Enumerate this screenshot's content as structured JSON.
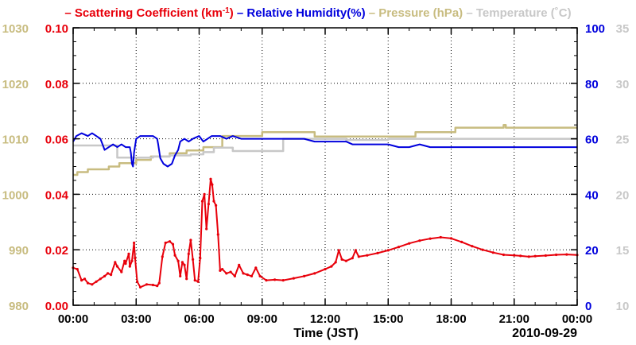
{
  "chart_data": {
    "type": "line",
    "title_parts": [
      {
        "text": "– Scattering Coefficient (km",
        "color_key": "scattering"
      },
      {
        "text": "-1",
        "color_key": "scattering",
        "superscript": true
      },
      {
        "text": ") ",
        "color_key": "scattering"
      },
      {
        "text": "– Relative Humidity(%) ",
        "color_key": "humidity"
      },
      {
        "text": "– Pressure (hPa) ",
        "color_key": "pressure"
      },
      {
        "text": "– Temperature (˚C)",
        "color_key": "temperature"
      }
    ],
    "colors": {
      "scattering": "#e8000b",
      "humidity": "#0000dd",
      "pressure": "#c8bc80",
      "temperature": "#c8c8c8",
      "grid": "#000000"
    },
    "xlabel": "Time (JST)",
    "date_label": "2010-09-29",
    "x_range_hours": [
      0,
      24
    ],
    "x_ticks": [
      {
        "h": 0,
        "label": "00:00"
      },
      {
        "h": 3,
        "label": "03:00"
      },
      {
        "h": 6,
        "label": "06:00"
      },
      {
        "h": 9,
        "label": "09:00"
      },
      {
        "h": 12,
        "label": "12:00"
      },
      {
        "h": 15,
        "label": "15:00"
      },
      {
        "h": 18,
        "label": "18:00"
      },
      {
        "h": 21,
        "label": "21:00"
      },
      {
        "h": 24,
        "label": "00:00"
      }
    ],
    "axes": {
      "scattering": {
        "range": [
          0,
          0.1
        ],
        "ticks": [
          "0.00",
          "0.02",
          "0.04",
          "0.06",
          "0.08",
          "0.10"
        ]
      },
      "pressure": {
        "range": [
          980,
          1030
        ],
        "ticks": [
          "980",
          "990",
          "1000",
          "1010",
          "1020",
          "1030"
        ]
      },
      "humidity": {
        "range": [
          0,
          100
        ],
        "ticks": [
          "0",
          "20",
          "40",
          "60",
          "80",
          "100"
        ]
      },
      "temperature": {
        "range": [
          10,
          35
        ],
        "ticks": [
          "10",
          "15",
          "20",
          "25",
          "30",
          "35"
        ]
      }
    },
    "series": [
      {
        "name": "Scattering Coefficient",
        "key": "scattering",
        "axis": "scattering",
        "markers": true,
        "points": [
          [
            0,
            0.0135
          ],
          [
            0.2,
            0.013
          ],
          [
            0.4,
            0.009
          ],
          [
            0.55,
            0.0095
          ],
          [
            0.7,
            0.008
          ],
          [
            0.9,
            0.0075
          ],
          [
            1.1,
            0.0085
          ],
          [
            1.3,
            0.0095
          ],
          [
            1.5,
            0.0105
          ],
          [
            1.65,
            0.0115
          ],
          [
            1.8,
            0.011
          ],
          [
            2.0,
            0.0155
          ],
          [
            2.1,
            0.014
          ],
          [
            2.3,
            0.012
          ],
          [
            2.45,
            0.016
          ],
          [
            2.5,
            0.015
          ],
          [
            2.65,
            0.0185
          ],
          [
            2.7,
            0.014
          ],
          [
            2.8,
            0.016
          ],
          [
            2.9,
            0.0225
          ],
          [
            2.95,
            0.017
          ],
          [
            3.05,
            0.0085
          ],
          [
            3.2,
            0.0065
          ],
          [
            3.5,
            0.0075
          ],
          [
            3.8,
            0.0073
          ],
          [
            4.0,
            0.007
          ],
          [
            4.1,
            0.008
          ],
          [
            4.25,
            0.0175
          ],
          [
            4.4,
            0.0225
          ],
          [
            4.6,
            0.023
          ],
          [
            4.75,
            0.022
          ],
          [
            4.85,
            0.018
          ],
          [
            5.0,
            0.016
          ],
          [
            5.1,
            0.0105
          ],
          [
            5.2,
            0.0155
          ],
          [
            5.3,
            0.0145
          ],
          [
            5.4,
            0.0095
          ],
          [
            5.5,
            0.0185
          ],
          [
            5.6,
            0.0235
          ],
          [
            5.7,
            0.0165
          ],
          [
            5.8,
            0.009
          ],
          [
            5.95,
            0.0085
          ],
          [
            6.05,
            0.017
          ],
          [
            6.15,
            0.0375
          ],
          [
            6.25,
            0.04
          ],
          [
            6.35,
            0.0275
          ],
          [
            6.45,
            0.0365
          ],
          [
            6.55,
            0.0455
          ],
          [
            6.62,
            0.0435
          ],
          [
            6.7,
            0.0375
          ],
          [
            6.8,
            0.036
          ],
          [
            6.9,
            0.0255
          ],
          [
            7.0,
            0.0125
          ],
          [
            7.1,
            0.013
          ],
          [
            7.3,
            0.0115
          ],
          [
            7.5,
            0.012
          ],
          [
            7.7,
            0.0105
          ],
          [
            7.9,
            0.0145
          ],
          [
            8.1,
            0.0115
          ],
          [
            8.3,
            0.011
          ],
          [
            8.5,
            0.0105
          ],
          [
            8.7,
            0.0135
          ],
          [
            8.9,
            0.0105
          ],
          [
            9.2,
            0.009
          ],
          [
            9.6,
            0.0092
          ],
          [
            10.0,
            0.009
          ],
          [
            10.5,
            0.0097
          ],
          [
            11.0,
            0.0105
          ],
          [
            11.5,
            0.0115
          ],
          [
            12.0,
            0.013
          ],
          [
            12.3,
            0.014
          ],
          [
            12.5,
            0.0155
          ],
          [
            12.65,
            0.0198
          ],
          [
            12.8,
            0.0165
          ],
          [
            13.0,
            0.016
          ],
          [
            13.3,
            0.017
          ],
          [
            13.45,
            0.0198
          ],
          [
            13.6,
            0.0175
          ],
          [
            14.0,
            0.018
          ],
          [
            14.5,
            0.0188
          ],
          [
            15.0,
            0.0198
          ],
          [
            15.5,
            0.021
          ],
          [
            16.0,
            0.0223
          ],
          [
            16.5,
            0.0233
          ],
          [
            17.0,
            0.024
          ],
          [
            17.5,
            0.0245
          ],
          [
            18.0,
            0.0241
          ],
          [
            18.5,
            0.0228
          ],
          [
            19.0,
            0.0213
          ],
          [
            19.5,
            0.02
          ],
          [
            20.0,
            0.019
          ],
          [
            20.5,
            0.0182
          ],
          [
            21.0,
            0.018
          ],
          [
            21.3,
            0.0178
          ],
          [
            21.7,
            0.0175
          ],
          [
            22.0,
            0.0177
          ],
          [
            22.5,
            0.0179
          ],
          [
            23.0,
            0.0182
          ],
          [
            23.5,
            0.0183
          ],
          [
            24.0,
            0.0181
          ]
        ]
      },
      {
        "name": "Relative Humidity",
        "key": "humidity",
        "axis": "humidity",
        "markers": false,
        "points": [
          [
            0,
            59
          ],
          [
            0.15,
            61
          ],
          [
            0.4,
            62
          ],
          [
            0.7,
            61
          ],
          [
            0.9,
            62
          ],
          [
            1.1,
            61
          ],
          [
            1.3,
            60
          ],
          [
            1.4,
            58
          ],
          [
            1.5,
            56
          ],
          [
            1.7,
            57
          ],
          [
            1.9,
            58
          ],
          [
            2.1,
            57
          ],
          [
            2.3,
            58
          ],
          [
            2.5,
            57
          ],
          [
            2.7,
            57
          ],
          [
            2.75,
            55
          ],
          [
            2.8,
            51
          ],
          [
            2.85,
            50
          ],
          [
            2.9,
            55
          ],
          [
            3.0,
            60
          ],
          [
            3.2,
            61
          ],
          [
            3.5,
            61
          ],
          [
            3.8,
            61
          ],
          [
            4.0,
            60
          ],
          [
            4.05,
            58
          ],
          [
            4.15,
            53
          ],
          [
            4.3,
            51
          ],
          [
            4.5,
            50
          ],
          [
            4.7,
            51
          ],
          [
            4.85,
            54
          ],
          [
            5.0,
            56
          ],
          [
            5.1,
            59
          ],
          [
            5.3,
            60
          ],
          [
            5.5,
            59
          ],
          [
            5.7,
            60
          ],
          [
            6.0,
            61
          ],
          [
            6.2,
            59
          ],
          [
            6.4,
            60
          ],
          [
            6.6,
            61
          ],
          [
            7.0,
            61
          ],
          [
            7.3,
            60
          ],
          [
            7.6,
            61
          ],
          [
            8.0,
            60
          ],
          [
            8.5,
            60
          ],
          [
            9.0,
            60
          ],
          [
            10.0,
            60
          ],
          [
            11.0,
            60
          ],
          [
            11.5,
            59
          ],
          [
            12.0,
            59
          ],
          [
            13.0,
            59
          ],
          [
            13.3,
            58
          ],
          [
            14.0,
            58
          ],
          [
            15.0,
            58
          ],
          [
            15.5,
            57
          ],
          [
            16.0,
            57
          ],
          [
            16.5,
            58
          ],
          [
            17.0,
            57
          ],
          [
            18.0,
            57
          ],
          [
            19.0,
            57
          ],
          [
            20.0,
            57
          ],
          [
            21.0,
            57
          ],
          [
            22.0,
            57
          ],
          [
            23.0,
            57
          ],
          [
            24.0,
            57
          ]
        ]
      },
      {
        "name": "Pressure",
        "key": "pressure",
        "axis": "pressure",
        "markers": false,
        "steps": [
          [
            0,
            1003.5
          ],
          [
            0.2,
            1004
          ],
          [
            0.7,
            1004.5
          ],
          [
            1.7,
            1005
          ],
          [
            2.2,
            1005.6
          ],
          [
            3.0,
            1006.2
          ],
          [
            3.7,
            1006.8
          ],
          [
            4.6,
            1007.4
          ],
          [
            5.4,
            1007.9
          ],
          [
            6.2,
            1008.5
          ],
          [
            7.1,
            1010.5
          ],
          [
            9.0,
            1011.2
          ],
          [
            11.5,
            1010.4
          ],
          [
            16.3,
            1011.2
          ],
          [
            18.2,
            1012
          ],
          [
            20.5,
            1012.5
          ],
          [
            20.6,
            1012
          ],
          [
            24.0,
            1012
          ]
        ]
      },
      {
        "name": "Temperature",
        "key": "temperature",
        "axis": "temperature",
        "markers": false,
        "steps": [
          [
            0,
            24.4
          ],
          [
            2.1,
            23.3
          ],
          [
            3.8,
            23.4
          ],
          [
            4.6,
            23.5
          ],
          [
            5.6,
            23.6
          ],
          [
            6.2,
            23.8
          ],
          [
            6.7,
            24.2
          ],
          [
            7.6,
            23.9
          ],
          [
            10.0,
            25.0
          ],
          [
            11.5,
            25.0
          ],
          [
            13.0,
            24.9
          ],
          [
            15.0,
            25.0
          ],
          [
            24.0,
            25.0
          ]
        ]
      }
    ]
  }
}
